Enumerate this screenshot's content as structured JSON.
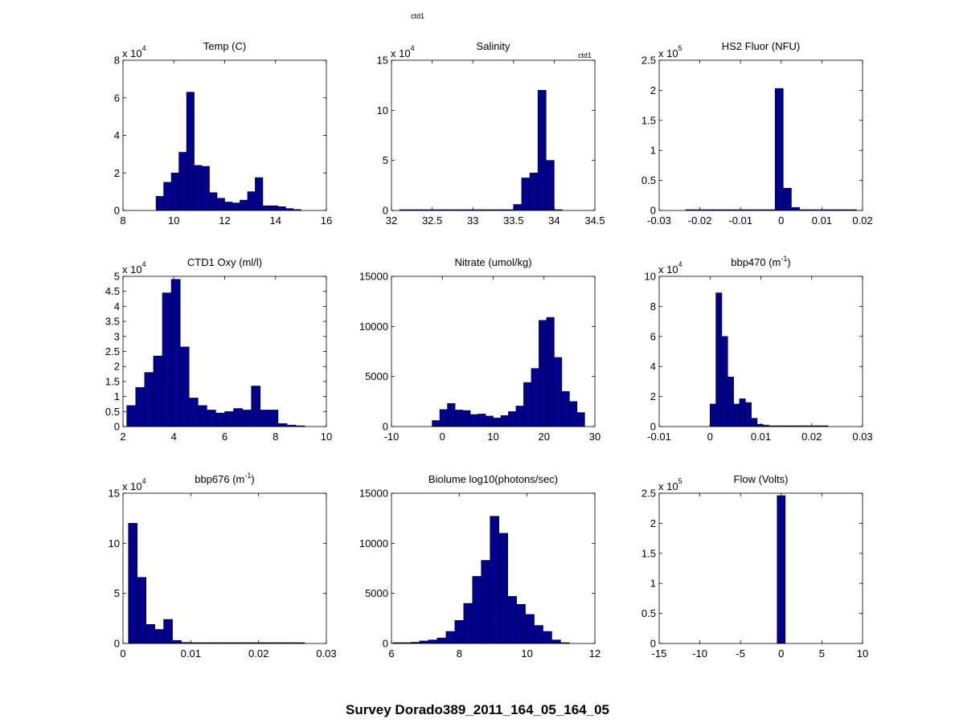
{
  "figure": {
    "footer_title": "Survey Dorado389_2011_164_05_164_05",
    "annotation_top": "ctd1",
    "annotation_side": "ctd1",
    "bar_color": "#00008f",
    "edge_color": "#000000"
  },
  "chart_data": [
    {
      "type": "bar",
      "title": "Temp (C)",
      "title_parts": [
        "Temp (C)"
      ],
      "xlim": [
        8,
        16
      ],
      "ylim": [
        0,
        8
      ],
      "xticks": [
        8,
        10,
        12,
        14,
        16
      ],
      "yticks": [
        0,
        2,
        4,
        6,
        8
      ],
      "exponent": "4",
      "bin_start": 9.3,
      "bin_width": 0.3,
      "values": [
        0.75,
        1.5,
        2.0,
        3.1,
        6.3,
        2.4,
        2.35,
        0.95,
        0.65,
        0.45,
        0.4,
        0.55,
        1.0,
        1.75,
        0.25,
        0.25,
        0.2,
        0.1,
        0.05,
        0,
        0
      ]
    },
    {
      "type": "bar",
      "title": "Salinity",
      "title_parts": [
        "Salinity"
      ],
      "xlim": [
        32,
        34.5
      ],
      "ylim": [
        0,
        15
      ],
      "xticks": [
        32,
        32.5,
        33,
        33.5,
        34,
        34.5
      ],
      "yticks": [
        0,
        5,
        10,
        15
      ],
      "exponent": "4",
      "bin_start": 32.1,
      "bin_width": 0.1,
      "values": [
        0.05,
        0.05,
        0.05,
        0.05,
        0.05,
        0.05,
        0.05,
        0.05,
        0.05,
        0.05,
        0.05,
        0.05,
        0.05,
        0.05,
        0.6,
        3.25,
        3.75,
        12.0,
        5.0,
        0.05
      ]
    },
    {
      "type": "bar",
      "title": "HS2 Fluor (NFU)",
      "title_parts": [
        "HS2 Fluor (NFU)"
      ],
      "xlim": [
        -0.03,
        0.02
      ],
      "ylim": [
        0,
        2.5
      ],
      "xticks": [
        -0.03,
        -0.02,
        -0.01,
        0,
        0.01,
        0.02
      ],
      "yticks": [
        0,
        0.5,
        1,
        1.5,
        2,
        2.5
      ],
      "exponent": "5",
      "bin_start": -0.0235,
      "bin_width": 0.002,
      "values": [
        0.01,
        0.01,
        0.01,
        0.005,
        0.005,
        0.005,
        0.01,
        0.005,
        0.005,
        0.005,
        0.005,
        2.03,
        0.37,
        0.05,
        0.01,
        0.01,
        0.01,
        0.01,
        0.01,
        0.01,
        0.01
      ]
    },
    {
      "type": "bar",
      "title": "CTD1 Oxy (ml/l)",
      "title_parts": [
        "CTD1 Oxy (ml/l)"
      ],
      "xlim": [
        2,
        10
      ],
      "ylim": [
        0,
        5
      ],
      "xticks": [
        2,
        4,
        6,
        8,
        10
      ],
      "yticks": [
        0,
        0.5,
        1,
        1.5,
        2,
        2.5,
        3,
        3.5,
        4,
        4.5,
        5
      ],
      "exponent": "4",
      "bin_start": 2.15,
      "bin_width": 0.35,
      "values": [
        0.7,
        1.3,
        1.8,
        2.35,
        4.45,
        4.9,
        2.65,
        0.95,
        0.7,
        0.55,
        0.45,
        0.5,
        0.6,
        0.55,
        1.35,
        0.55,
        0.55,
        0.1,
        0.05,
        0.02
      ]
    },
    {
      "type": "bar",
      "title": "Nitrate (umol/kg)",
      "title_parts": [
        "Nitrate (umol/kg)"
      ],
      "xlim": [
        -10,
        30
      ],
      "ylim": [
        0,
        15000
      ],
      "xticks": [
        -10,
        0,
        10,
        20,
        30
      ],
      "yticks": [
        0,
        5000,
        10000,
        15000
      ],
      "exponent": "",
      "bin_start": -2.0,
      "bin_width": 1.5,
      "values": [
        600,
        1700,
        2300,
        1650,
        1600,
        1200,
        1250,
        1050,
        850,
        1100,
        1500,
        2050,
        4400,
        5800,
        10600,
        10900,
        6900,
        3500,
        2500,
        1400
      ]
    },
    {
      "type": "bar",
      "title": "bbp470 (m⁻¹)",
      "title_parts": [
        "bbp470 (m",
        "-1",
        ")"
      ],
      "xlim": [
        -0.01,
        0.03
      ],
      "ylim": [
        0,
        10
      ],
      "xticks": [
        -0.01,
        0,
        0.01,
        0.02,
        0.03
      ],
      "yticks": [
        0,
        2,
        4,
        6,
        8,
        10
      ],
      "exponent": "4",
      "bin_start": 0.0,
      "bin_width": 0.00116,
      "values": [
        1.5,
        8.9,
        6.0,
        3.3,
        1.5,
        1.85,
        1.6,
        0.55,
        0.15,
        0.1,
        0.05,
        0.05,
        0.05,
        0.05,
        0.05,
        0.05,
        0.05,
        0.05,
        0.05,
        0.05
      ]
    },
    {
      "type": "bar",
      "title": "bbp676 (m⁻¹)",
      "title_parts": [
        "bbp676 (m",
        "-1",
        ")"
      ],
      "xlim": [
        0,
        0.03
      ],
      "ylim": [
        0,
        15
      ],
      "xticks": [
        0,
        0.01,
        0.02,
        0.03
      ],
      "yticks": [
        0,
        5,
        10,
        15
      ],
      "exponent": "4",
      "bin_start": 0.0008,
      "bin_width": 0.0013,
      "values": [
        12.0,
        6.6,
        1.9,
        1.4,
        2.4,
        0.3,
        0.1,
        0.05,
        0.05,
        0.05,
        0.05,
        0.05,
        0.05,
        0.05,
        0.05,
        0.05,
        0.05,
        0.05,
        0.05,
        0.05
      ]
    },
    {
      "type": "bar",
      "title": "Biolume log10(photons/sec)",
      "title_parts": [
        "Biolume log10(photons/sec)"
      ],
      "xlim": [
        6,
        12
      ],
      "ylim": [
        0,
        15000
      ],
      "xticks": [
        6,
        8,
        10,
        12
      ],
      "yticks": [
        0,
        5000,
        10000,
        15000
      ],
      "exponent": "",
      "bin_start": 6.05,
      "bin_width": 0.26,
      "values": [
        50,
        80,
        120,
        250,
        350,
        550,
        1200,
        2300,
        4000,
        6700,
        8300,
        12700,
        11000,
        4700,
        3900,
        2900,
        1800,
        1200,
        350,
        50
      ]
    },
    {
      "type": "bar",
      "title": "Flow (Volts)",
      "title_parts": [
        "Flow (Volts)"
      ],
      "xlim": [
        -15,
        10
      ],
      "ylim": [
        0,
        2.5
      ],
      "xticks": [
        -15,
        -10,
        -5,
        0,
        5,
        10
      ],
      "yticks": [
        0,
        0.5,
        1,
        1.5,
        2,
        2.5
      ],
      "exponent": "5",
      "bin_start": -0.5,
      "bin_width": 1.0,
      "values": [
        2.46
      ]
    }
  ]
}
